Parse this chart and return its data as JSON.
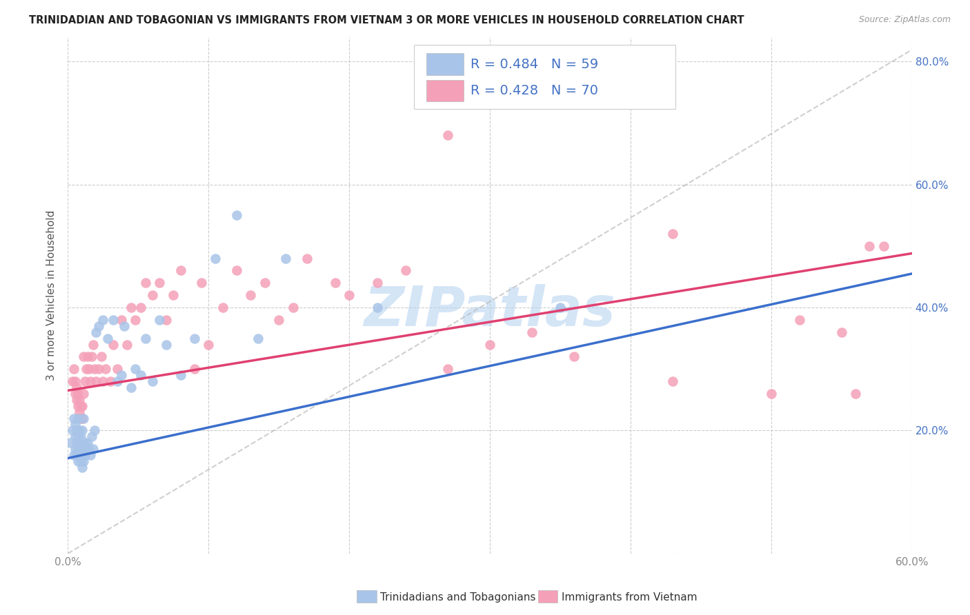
{
  "title": "TRINIDADIAN AND TOBAGONIAN VS IMMIGRANTS FROM VIETNAM 3 OR MORE VEHICLES IN HOUSEHOLD CORRELATION CHART",
  "source": "Source: ZipAtlas.com",
  "ylabel": "3 or more Vehicles in Household",
  "xmin": 0.0,
  "xmax": 0.6,
  "ymin": 0.0,
  "ymax": 0.84,
  "blue_R": 0.484,
  "blue_N": 59,
  "pink_R": 0.428,
  "pink_N": 70,
  "blue_color": "#A8C4E8",
  "pink_color": "#F4A0B8",
  "blue_line_color": "#3B6FCC",
  "pink_line_color": "#E04070",
  "ref_line_color": "#BBBBBB",
  "legend_label_blue": "Trinidadians and Tobagonians",
  "legend_label_pink": "Immigrants from Vietnam",
  "watermark": "ZIPatlas",
  "watermark_color": "#B8D4F0",
  "right_axis_color": "#4472C4",
  "tick_color": "#888888",
  "blue_line_y0": 0.155,
  "blue_line_y1": 0.455,
  "pink_line_y0": 0.265,
  "pink_line_y1": 0.488,
  "blue_scatter_x": [
    0.002,
    0.003,
    0.004,
    0.004,
    0.005,
    0.005,
    0.005,
    0.006,
    0.006,
    0.006,
    0.007,
    0.007,
    0.007,
    0.007,
    0.008,
    0.008,
    0.008,
    0.009,
    0.009,
    0.009,
    0.01,
    0.01,
    0.01,
    0.01,
    0.011,
    0.011,
    0.011,
    0.012,
    0.012,
    0.013,
    0.014,
    0.015,
    0.016,
    0.017,
    0.018,
    0.019,
    0.02,
    0.022,
    0.025,
    0.028,
    0.032,
    0.035,
    0.038,
    0.04,
    0.045,
    0.048,
    0.052,
    0.055,
    0.06,
    0.065,
    0.07,
    0.08,
    0.09,
    0.105,
    0.12,
    0.135,
    0.155,
    0.22,
    0.35
  ],
  "blue_scatter_y": [
    0.18,
    0.2,
    0.16,
    0.22,
    0.17,
    0.19,
    0.21,
    0.16,
    0.18,
    0.2,
    0.15,
    0.17,
    0.19,
    0.22,
    0.16,
    0.18,
    0.2,
    0.15,
    0.17,
    0.19,
    0.14,
    0.16,
    0.18,
    0.2,
    0.15,
    0.17,
    0.22,
    0.16,
    0.18,
    0.17,
    0.18,
    0.17,
    0.16,
    0.19,
    0.17,
    0.2,
    0.36,
    0.37,
    0.38,
    0.35,
    0.38,
    0.28,
    0.29,
    0.37,
    0.27,
    0.3,
    0.29,
    0.35,
    0.28,
    0.38,
    0.34,
    0.29,
    0.35,
    0.48,
    0.55,
    0.35,
    0.48,
    0.4,
    0.4
  ],
  "pink_scatter_x": [
    0.003,
    0.004,
    0.005,
    0.005,
    0.006,
    0.006,
    0.007,
    0.007,
    0.008,
    0.008,
    0.009,
    0.009,
    0.01,
    0.01,
    0.011,
    0.011,
    0.012,
    0.013,
    0.014,
    0.015,
    0.016,
    0.017,
    0.018,
    0.019,
    0.02,
    0.022,
    0.024,
    0.025,
    0.027,
    0.03,
    0.032,
    0.035,
    0.038,
    0.042,
    0.045,
    0.048,
    0.052,
    0.055,
    0.06,
    0.065,
    0.07,
    0.075,
    0.08,
    0.09,
    0.095,
    0.1,
    0.11,
    0.12,
    0.13,
    0.14,
    0.15,
    0.16,
    0.17,
    0.19,
    0.2,
    0.22,
    0.24,
    0.27,
    0.3,
    0.33,
    0.36,
    0.43,
    0.5,
    0.52,
    0.55,
    0.56,
    0.57,
    0.58,
    0.43,
    0.27
  ],
  "pink_scatter_y": [
    0.28,
    0.3,
    0.26,
    0.28,
    0.25,
    0.27,
    0.24,
    0.26,
    0.23,
    0.25,
    0.22,
    0.24,
    0.22,
    0.24,
    0.26,
    0.32,
    0.28,
    0.3,
    0.32,
    0.3,
    0.28,
    0.32,
    0.34,
    0.3,
    0.28,
    0.3,
    0.32,
    0.28,
    0.3,
    0.28,
    0.34,
    0.3,
    0.38,
    0.34,
    0.4,
    0.38,
    0.4,
    0.44,
    0.42,
    0.44,
    0.38,
    0.42,
    0.46,
    0.3,
    0.44,
    0.34,
    0.4,
    0.46,
    0.42,
    0.44,
    0.38,
    0.4,
    0.48,
    0.44,
    0.42,
    0.44,
    0.46,
    0.3,
    0.34,
    0.36,
    0.32,
    0.28,
    0.26,
    0.38,
    0.36,
    0.26,
    0.5,
    0.5,
    0.52,
    0.68
  ]
}
